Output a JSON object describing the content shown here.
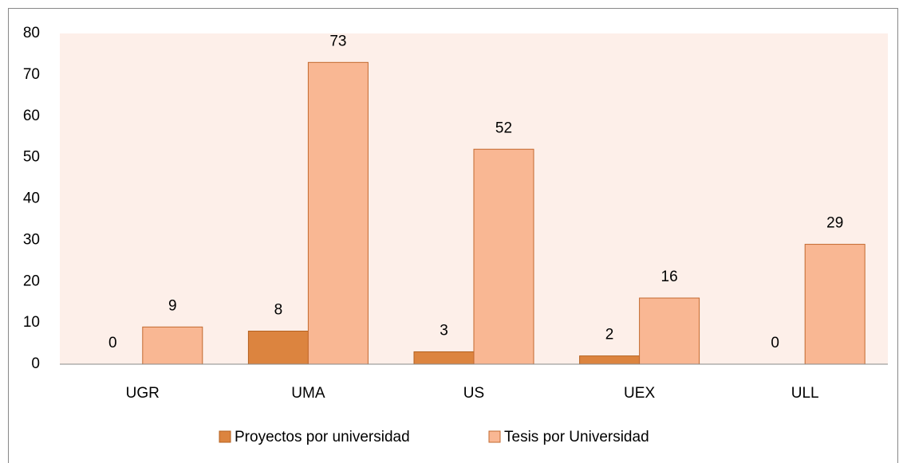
{
  "chart_data": {
    "type": "bar",
    "categories": [
      "UGR",
      "UMA",
      "US",
      "UEX",
      "ULL"
    ],
    "series": [
      {
        "name": "Proyectos por universidad",
        "color": "#dc843f",
        "values": [
          0,
          8,
          3,
          2,
          0
        ]
      },
      {
        "name": "Tesis por Universidad",
        "color": "#f9b793",
        "values": [
          9,
          73,
          52,
          16,
          29
        ]
      }
    ],
    "ylim": [
      0,
      80
    ],
    "yticks": [
      0,
      10,
      20,
      30,
      40,
      50,
      60,
      70,
      80
    ],
    "grid": false,
    "legend": "bottom",
    "data_labels": true
  }
}
